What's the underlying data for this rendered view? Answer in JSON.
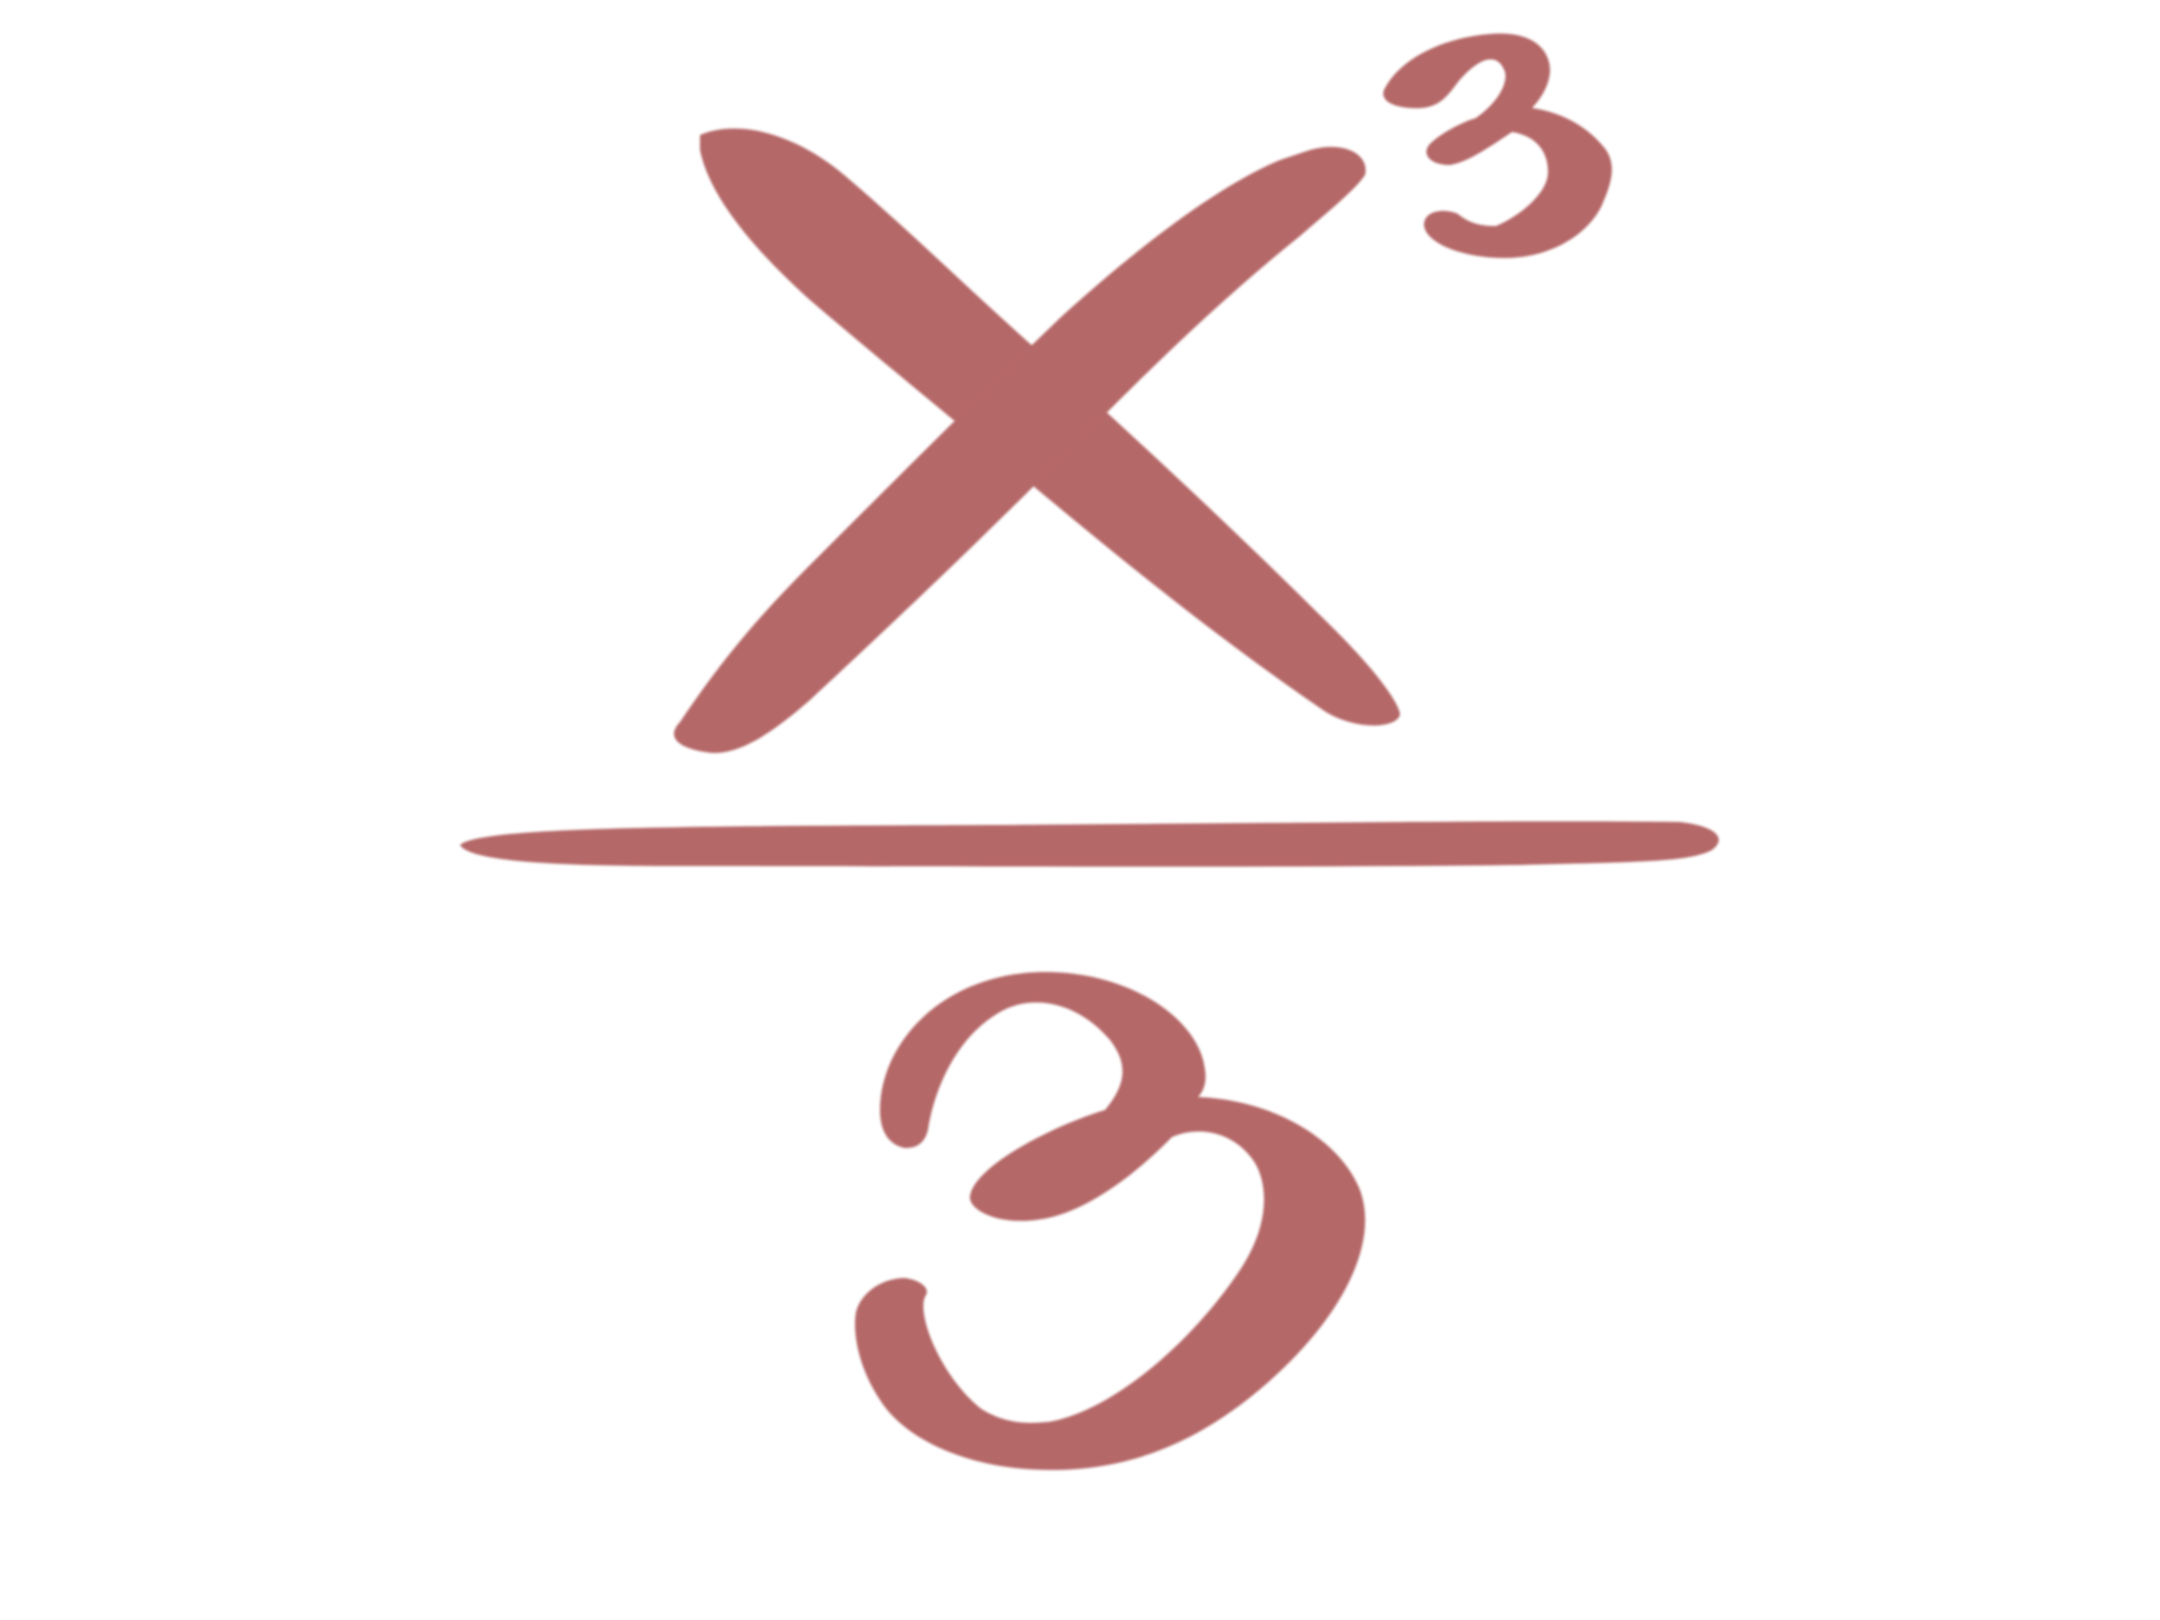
{
  "expression": {
    "numerator": {
      "base": "x",
      "exponent": "3"
    },
    "denominator": "3"
  },
  "colors": {
    "ink": "#B56868",
    "background": "#FFFFFF"
  }
}
